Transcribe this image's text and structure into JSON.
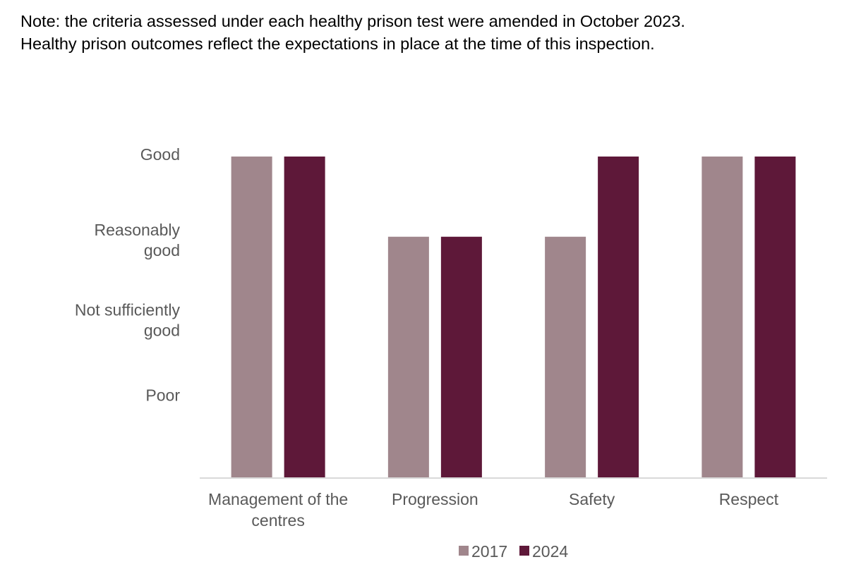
{
  "note": {
    "line1": "Note: the criteria assessed under each healthy prison test were amended in October 2023.",
    "line2": "Healthy prison outcomes reflect the expectations in place at the time of this inspection."
  },
  "chart_data": {
    "type": "bar",
    "categories": [
      [
        "Management of the",
        "centres"
      ],
      [
        "Progression"
      ],
      [
        "Safety"
      ],
      [
        "Respect"
      ]
    ],
    "y_levels": [
      {
        "value": 1,
        "label": [
          "Poor"
        ]
      },
      {
        "value": 2,
        "label": [
          "Not sufficiently",
          "good"
        ]
      },
      {
        "value": 3,
        "label": [
          "Reasonably",
          "good"
        ]
      },
      {
        "value": 4,
        "label": [
          "Good"
        ]
      }
    ],
    "ylim": [
      0,
      4
    ],
    "grid": false,
    "legend_position": "bottom",
    "series": [
      {
        "name": "2017",
        "color": "#a0868c",
        "values": [
          4,
          3,
          3,
          4
        ]
      },
      {
        "name": "2024",
        "color": "#5e1839",
        "values": [
          4,
          3,
          4,
          4
        ]
      }
    ]
  }
}
